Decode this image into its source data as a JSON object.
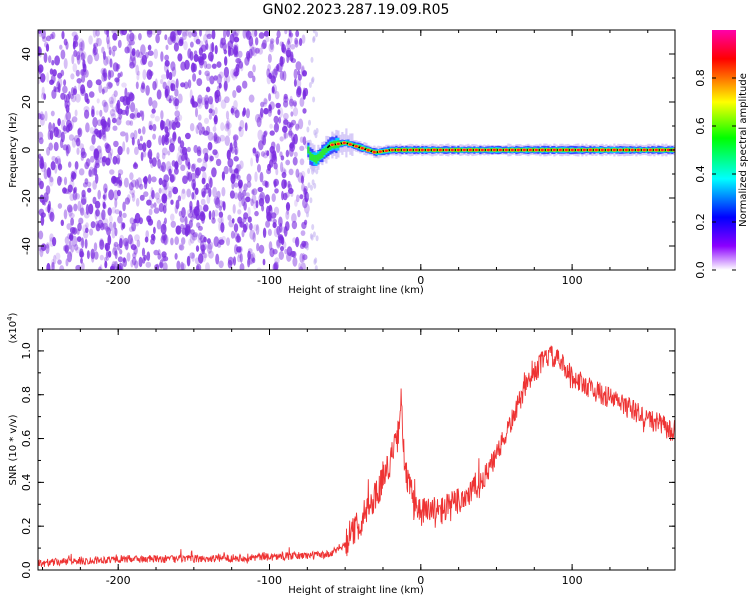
{
  "title": "GN02.2023.287.19.09.R05",
  "colors": {
    "trace": "#ee3333",
    "noise": "#7a2be0",
    "colorbar": [
      "#ff00ff",
      "#ff0000",
      "#ffff00",
      "#00ff00",
      "#00ffff",
      "#0000ff",
      "#8b00ff",
      "#ffffff"
    ]
  },
  "chart_data": [
    {
      "type": "heatmap",
      "xlabel": "Height of straight line (km)",
      "ylabel": "Frequency (Hz)",
      "xlim": [
        -253,
        168
      ],
      "ylim": [
        -50,
        50
      ],
      "x_ticks": [
        -200,
        -100,
        0,
        100
      ],
      "y_ticks": [
        -40,
        -20,
        0,
        20,
        40
      ],
      "colorbar": {
        "label": "Normalized spectral amplitude",
        "range": [
          0,
          1
        ],
        "ticks": [
          "0.0",
          "0.2",
          "0.4",
          "0.6",
          "0.8"
        ]
      },
      "regions": [
        {
          "name": "noise",
          "x_range": [
            -253,
            -75
          ],
          "frequency_range": [
            -50,
            50
          ],
          "amplitude": [
            0.05,
            0.25
          ]
        },
        {
          "name": "signal",
          "x_range": [
            -75,
            168
          ],
          "frequency_center": 0,
          "peak_amplitude": 0.9
        }
      ],
      "signal_track": {
        "x": [
          -75,
          -70,
          -60,
          -50,
          -40,
          -30,
          -20,
          0,
          50,
          100,
          150,
          168
        ],
        "frequency": [
          -2,
          -4,
          2,
          3,
          1,
          -1,
          0,
          0,
          0,
          0,
          0,
          0
        ]
      }
    },
    {
      "type": "line",
      "xlabel": "Height of straight line (km)",
      "ylabel": "SNR (10 * v/v)",
      "yscale_label": "(x10^4)",
      "xlim": [
        -253,
        168
      ],
      "ylim": [
        0,
        1.1
      ],
      "x_ticks": [
        -200,
        -100,
        0,
        100
      ],
      "y_ticks": [
        "0.0",
        "0.2",
        "0.4",
        "0.6",
        "0.8",
        "1.0"
      ],
      "series": [
        {
          "x": [
            -253,
            -230,
            -200,
            -150,
            -100,
            -60,
            -50,
            -45,
            -40,
            -35,
            -30,
            -25,
            -20,
            -17,
            -15,
            -13,
            -12,
            -10,
            -5,
            0,
            10,
            20,
            30,
            40,
            50,
            60,
            70,
            80,
            85,
            90,
            95,
            100,
            110,
            120,
            130,
            140,
            150,
            160,
            168
          ],
          "y": [
            0.03,
            0.04,
            0.05,
            0.05,
            0.06,
            0.07,
            0.12,
            0.17,
            0.22,
            0.28,
            0.34,
            0.42,
            0.5,
            0.56,
            0.62,
            0.8,
            0.6,
            0.44,
            0.32,
            0.27,
            0.26,
            0.29,
            0.34,
            0.4,
            0.52,
            0.68,
            0.85,
            0.95,
            0.98,
            0.96,
            0.93,
            0.88,
            0.84,
            0.8,
            0.77,
            0.73,
            0.69,
            0.66,
            0.62
          ]
        }
      ]
    }
  ]
}
